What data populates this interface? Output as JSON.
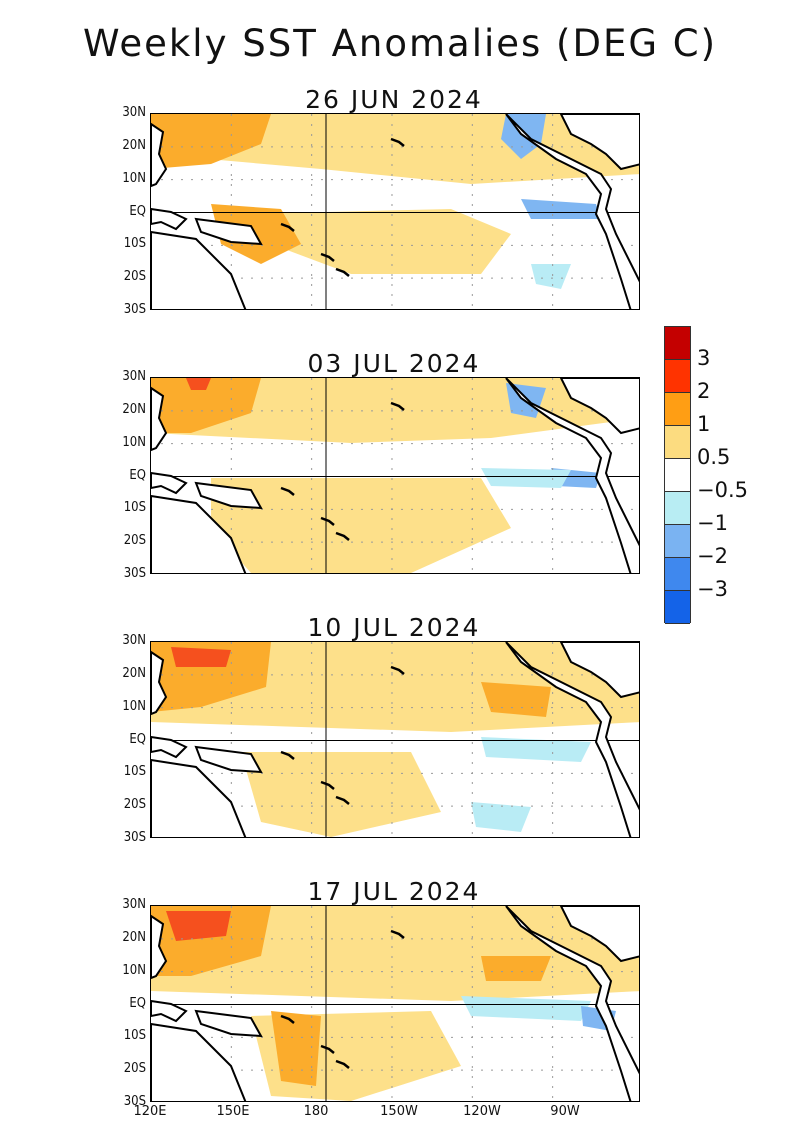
{
  "title": "Weekly SST Anomalies (DEG C)",
  "panels": [
    {
      "date": "26 JUN 2024"
    },
    {
      "date": "03 JUL 2024"
    },
    {
      "date": "10 JUL 2024"
    },
    {
      "date": "17 JUL 2024"
    }
  ],
  "lat_ticks": [
    "30N",
    "20N",
    "10N",
    "EQ",
    "10S",
    "20S",
    "30S"
  ],
  "lon_ticks": [
    "120E",
    "150E",
    "180",
    "150W",
    "120W",
    "90W"
  ],
  "colorbar": {
    "colors": [
      "#c40000",
      "#ff3300",
      "#ff9e14",
      "#fcdc80",
      "#ffffff",
      "#b8edf3",
      "#7ab3f2",
      "#3f88ee",
      "#1463e8"
    ],
    "labels": [
      "3",
      "2",
      "1",
      "0.5",
      "−0.5",
      "−1",
      "−2",
      "−3"
    ]
  },
  "palette": {
    "warm_light": "#fde08a",
    "warm": "#fbac2c",
    "hot": "#f5501e",
    "cool_light": "#b9ecf5",
    "cool": "#7fb6f2",
    "land_outline": "#000000"
  }
}
